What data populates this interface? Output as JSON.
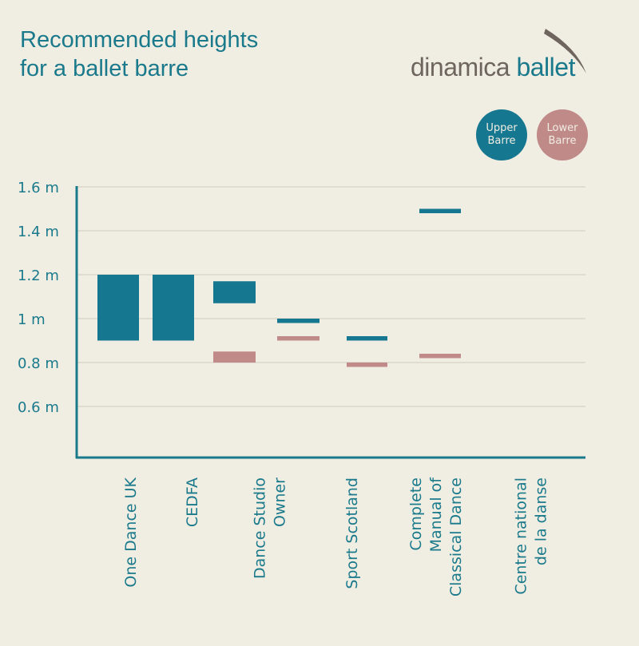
{
  "title_lines": [
    "Recommended heights",
    "for a ballet barre"
  ],
  "logo": {
    "word1": "dinamica",
    "word2": "ballet"
  },
  "legend": [
    {
      "label_lines": [
        "Upper",
        "Barre"
      ],
      "color": "#167890"
    },
    {
      "label_lines": [
        "Lower",
        "Barre"
      ],
      "color": "#c08a88"
    }
  ],
  "chart_data": {
    "type": "bar",
    "title": "Recommended heights for a ballet barre",
    "ylim": [
      0.37,
      1.6
    ],
    "yticks": [
      0.6,
      0.8,
      1,
      1.2,
      1.4,
      1.6
    ],
    "ytick_labels": [
      "0.6 m",
      "0.8 m",
      "1 m",
      "1.2 m",
      "1.4 m",
      "1.6 m"
    ],
    "grid": true,
    "legend_placement": "top-right",
    "categories": [
      [
        "One Dance UK"
      ],
      [
        "CEDFA"
      ],
      [
        "Dance Studio",
        "Owner"
      ],
      [
        "Sport Scotland"
      ],
      [
        "Complete",
        "Manual of",
        "Classical Dance"
      ],
      [
        "Centre national",
        "de la danse"
      ]
    ],
    "series": [
      {
        "name": "Upper Barre",
        "color": "#167890",
        "ranges": [
          [
            0.9,
            1.2
          ],
          [
            0.9,
            1.2
          ],
          [
            1.07,
            1.17
          ],
          [
            0.98,
            1.0
          ],
          [
            0.9,
            0.92
          ],
          [
            1.48,
            1.5
          ]
        ]
      },
      {
        "name": "Lower Barre",
        "color": "#c08a88",
        "ranges": [
          null,
          null,
          [
            0.8,
            0.85
          ],
          [
            0.9,
            0.92
          ],
          [
            0.78,
            0.8
          ],
          [
            0.82,
            0.84
          ]
        ]
      }
    ]
  }
}
